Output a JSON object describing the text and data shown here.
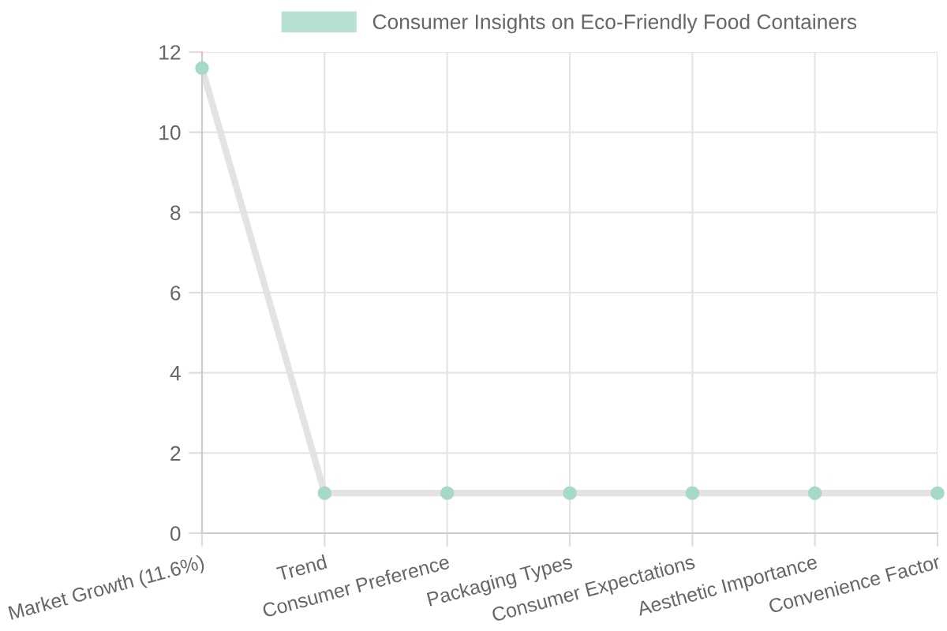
{
  "chart_data": {
    "type": "line",
    "categories": [
      "Market Growth (11.6%)",
      "Trend",
      "Consumer Preference",
      "Packaging Types",
      "Consumer Expectations",
      "Aesthetic Importance",
      "Convenience Factor"
    ],
    "series": [
      {
        "name": "Consumer Insights on Eco-Friendly Food Containers",
        "color": "#e3e3e3",
        "colors": [
          "#a6d9c9",
          "#a6d9c9",
          "#a6d9c9",
          "#a6d9c9",
          "#a6d9c9",
          "#a6d9c9",
          "#a6d9c9"
        ],
        "values": [
          11.6,
          1,
          1,
          1,
          1,
          1,
          1
        ]
      }
    ],
    "ylim": [
      0,
      12
    ],
    "yticks": [
      0,
      2,
      4,
      6,
      8,
      10,
      12
    ],
    "grid": true,
    "legend": "top",
    "marker": "circle",
    "line_style": "solid"
  }
}
